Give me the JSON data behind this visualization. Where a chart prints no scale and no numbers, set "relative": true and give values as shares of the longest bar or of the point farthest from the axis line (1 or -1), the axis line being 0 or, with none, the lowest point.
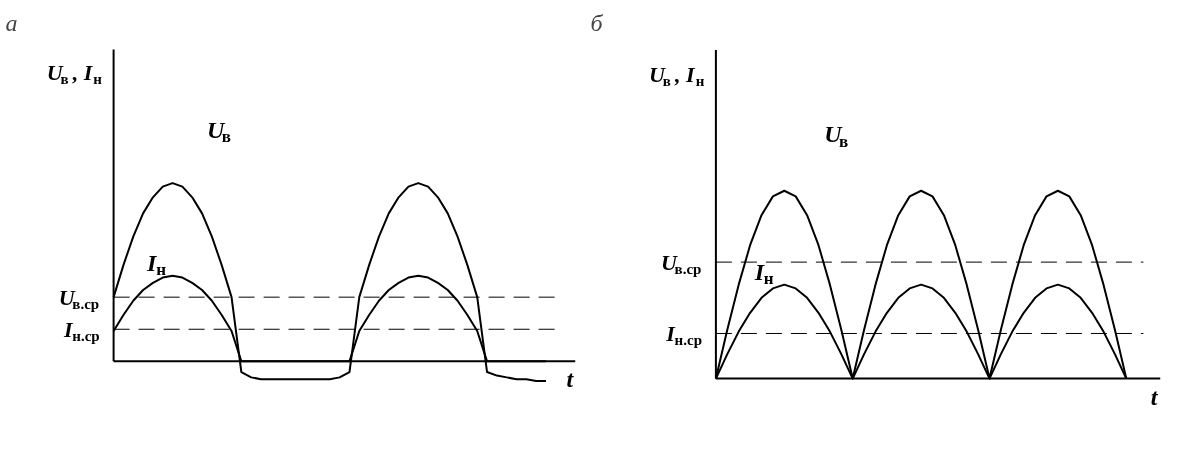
{
  "chart_data": [
    {
      "type": "line",
      "title": "а",
      "xlabel": "t",
      "ylabel": "U$_{в}$, I$_{н}$",
      "relative": true,
      "grid": false,
      "line_style": "solid",
      "categories": [
        null,
        null,
        null,
        null,
        null,
        null,
        null,
        null,
        null,
        null,
        null,
        null,
        null,
        null,
        null,
        null,
        null,
        null,
        null,
        null,
        null,
        null,
        null,
        null,
        null,
        null,
        null,
        null,
        null,
        null,
        null,
        null,
        null,
        null,
        null,
        null,
        null,
        null,
        null,
        null,
        null,
        null,
        null,
        null,
        null
      ],
      "series": [
        {
          "name": "U$_{в}$",
          "color": "#000000",
          "values": [
            0.36,
            0.54,
            0.7,
            0.83,
            0.92,
            0.98,
            1,
            0.98,
            0.92,
            0.83,
            0.7,
            0.54,
            0.36,
            -0.06,
            -0.09,
            -0.1,
            -0.1,
            -0.1,
            -0.1,
            -0.1,
            -0.1,
            -0.1,
            -0.1,
            -0.09,
            -0.06,
            0.36,
            0.54,
            0.7,
            0.83,
            0.92,
            0.98,
            1,
            0.98,
            0.92,
            0.83,
            0.7,
            0.54,
            0.36,
            -0.06,
            -0.08,
            -0.09,
            -0.1,
            -0.1,
            -0.11,
            -0.11
          ]
        },
        {
          "name": "I$_{н}$",
          "color": "#000000",
          "values": [
            0.17,
            0.26,
            0.34,
            0.4,
            0.44,
            0.47,
            0.48,
            0.47,
            0.44,
            0.4,
            0.34,
            0.26,
            0.17,
            0,
            0,
            0,
            0,
            0,
            0,
            0,
            0,
            0,
            0,
            0,
            0,
            0.17,
            0.26,
            0.34,
            0.4,
            0.44,
            0.47,
            0.48,
            0.47,
            0.44,
            0.4,
            0.34,
            0.26,
            0.17,
            0,
            0,
            0,
            0,
            0,
            0,
            0
          ]
        }
      ],
      "ref_lines": [
        {
          "axis": "y",
          "value": 0.36,
          "label": "U$_{в.ср}$",
          "color": "#000000",
          "line_style": "dashed"
        },
        {
          "axis": "y",
          "value": 0.18,
          "label": "I$_{н.ср}$",
          "color": "#000000",
          "line_style": "dashed"
        }
      ]
    },
    {
      "type": "line",
      "title": "б",
      "xlabel": "t",
      "ylabel": "U$_{в}$, I$_{н}$",
      "relative": true,
      "grid": false,
      "line_style": "solid",
      "categories": [
        null,
        null,
        null,
        null,
        null,
        null,
        null,
        null,
        null,
        null,
        null,
        null,
        null,
        null,
        null,
        null,
        null,
        null,
        null,
        null,
        null,
        null,
        null,
        null,
        null,
        null,
        null,
        null,
        null,
        null,
        null,
        null,
        null,
        null,
        null,
        null,
        null
      ],
      "series": [
        {
          "name": "U$_{в}$",
          "color": "#000000",
          "values": [
            0,
            0.26,
            0.5,
            0.71,
            0.87,
            0.97,
            1,
            0.97,
            0.87,
            0.71,
            0.5,
            0.26,
            0,
            0.26,
            0.5,
            0.71,
            0.87,
            0.97,
            1,
            0.97,
            0.87,
            0.71,
            0.5,
            0.26,
            0,
            0.26,
            0.5,
            0.71,
            0.87,
            0.97,
            1,
            0.97,
            0.87,
            0.71,
            0.5,
            0.26,
            0
          ]
        },
        {
          "name": "I$_{н}$",
          "color": "#000000",
          "values": [
            0,
            0.13,
            0.25,
            0.35,
            0.43,
            0.48,
            0.5,
            0.48,
            0.43,
            0.35,
            0.25,
            0.13,
            0,
            0.13,
            0.25,
            0.35,
            0.43,
            0.48,
            0.5,
            0.48,
            0.43,
            0.35,
            0.25,
            0.13,
            0,
            0.13,
            0.25,
            0.35,
            0.43,
            0.48,
            0.5,
            0.48,
            0.43,
            0.35,
            0.25,
            0.13,
            0
          ]
        }
      ],
      "ref_lines": [
        {
          "axis": "y",
          "value": 0.62,
          "label": "U$_{в.ср}$",
          "color": "#000000",
          "line_style": "dashed"
        },
        {
          "axis": "y",
          "value": 0.24,
          "label": "I$_{н.ср}$",
          "color": "#000000",
          "line_style": "dashed"
        }
      ]
    }
  ]
}
